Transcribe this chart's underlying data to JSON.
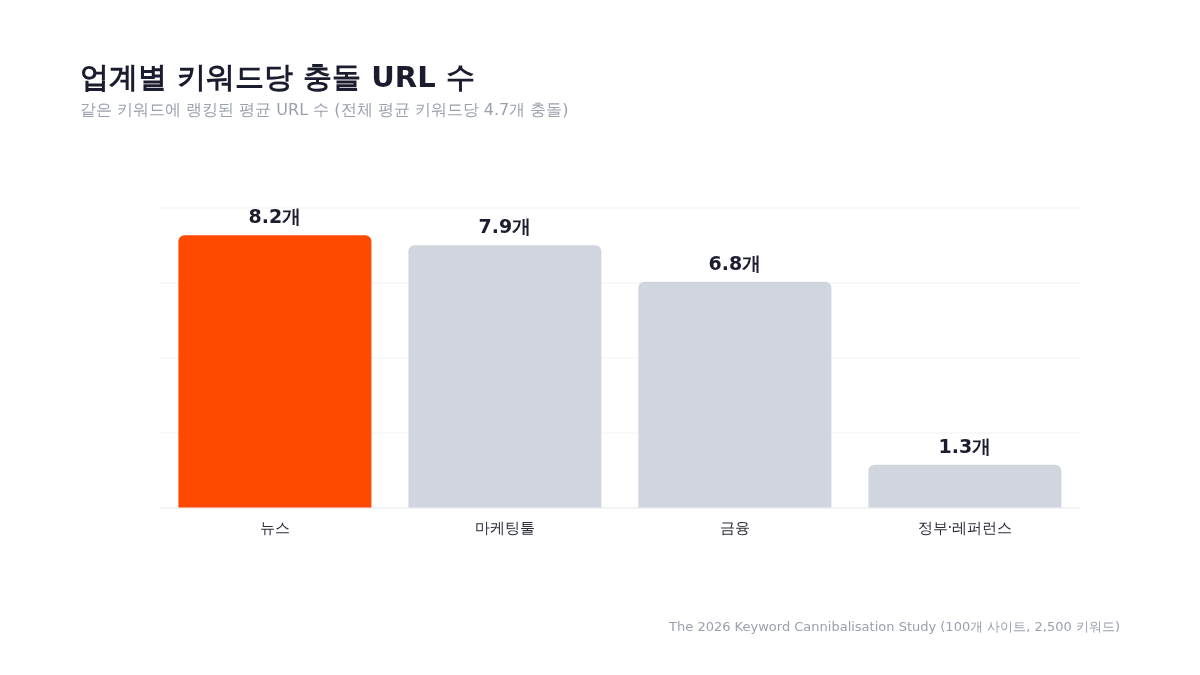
{
  "chart_data": {
    "type": "bar",
    "title": "업계별 키워드당 충돌 URL 수",
    "subtitle": "같은 키워드에 랭킹된 평균 URL 수 (전체 평균 키워드당 4.7개 충돌)",
    "categories": [
      "뉴스",
      "마케팅툴",
      "금융",
      "정부·레퍼런스"
    ],
    "values": [
      8.2,
      7.9,
      6.8,
      1.3
    ],
    "colors": [
      "#ff4800",
      "#d1d5de",
      "#d1d5de",
      "#d1d5de"
    ],
    "value_labels": [
      "8.2개",
      "7.9개",
      "6.8개",
      "1.3개"
    ],
    "ylim": [
      0,
      9.02
    ],
    "yticks": [
      {
        "value": 0,
        "label": null
      },
      {
        "value": 2.255,
        "label": null
      },
      {
        "value": 4.51,
        "label": null
      },
      {
        "value": 6.765,
        "label": null
      },
      {
        "value": 9.02,
        "label": null
      }
    ],
    "tick_labels": "x",
    "grid": "y",
    "annotations": [
      "The 2026 Keyword Cannibalisation Study (100개 사이트, 2,500 키워드)"
    ]
  }
}
